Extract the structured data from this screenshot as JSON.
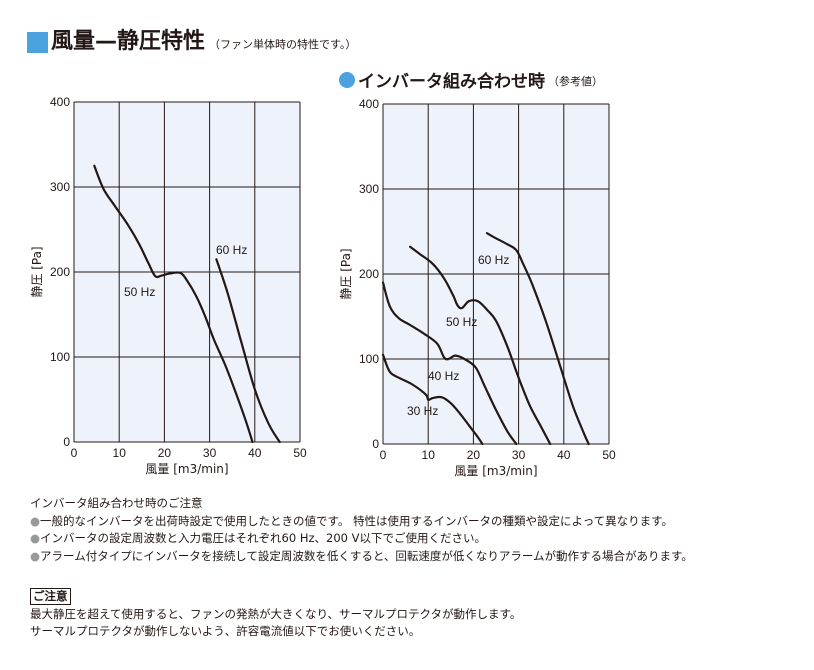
{
  "header": {
    "title": "風量—静圧特性",
    "subtitle": "（ファン単体時の特性です。）"
  },
  "inverter_header": {
    "title": "インバータ組み合わせ時",
    "subtitle": "（参考値）"
  },
  "colors": {
    "accent": "#4aa3df",
    "plot_background": "#eef3fb",
    "grid": "#231815",
    "curve": "#231815"
  },
  "chart_data": [
    {
      "type": "line",
      "title": "",
      "xlabel": "風量 [m3/min]",
      "ylabel": "静圧 [Pa]",
      "xlim": [
        0,
        50
      ],
      "ylim": [
        0,
        400
      ],
      "xticks": [
        "0",
        "10",
        "20",
        "30",
        "40",
        "50"
      ],
      "yticks": [
        "0",
        "100",
        "200",
        "300",
        "400"
      ],
      "grid": true,
      "series": [
        {
          "name": "50 Hz",
          "x": [
            4.5,
            6.5,
            9,
            12,
            14.5,
            16.5,
            18,
            19.5,
            21,
            23.5,
            25,
            27,
            29,
            31,
            33.5,
            36,
            38,
            39.5
          ],
          "y": [
            325,
            298,
            278,
            255,
            232,
            210,
            195,
            196,
            198,
            199,
            190,
            172,
            148,
            120,
            90,
            55,
            25,
            0
          ]
        },
        {
          "name": "60 Hz",
          "x": [
            31.5,
            34,
            37,
            40,
            43,
            45.5
          ],
          "y": [
            215,
            175,
            118,
            62,
            22,
            0
          ]
        }
      ]
    },
    {
      "type": "line",
      "title": "",
      "xlabel": "風量 [m3/min]",
      "ylabel": "静圧 [Pa]",
      "xlim": [
        0,
        50
      ],
      "ylim": [
        0,
        400
      ],
      "xticks": [
        "0",
        "10",
        "20",
        "30",
        "40",
        "50"
      ],
      "yticks": [
        "0",
        "100",
        "200",
        "300",
        "400"
      ],
      "grid": true,
      "series": [
        {
          "name": "60 Hz",
          "x": [
            23,
            25,
            27.5,
            29.5,
            31,
            33,
            36,
            39,
            42,
            44.5,
            45.5
          ],
          "y": [
            248,
            242,
            235,
            228,
            212,
            188,
            145,
            95,
            45,
            12,
            0
          ]
        },
        {
          "name": "50 Hz",
          "x": [
            6,
            8,
            11,
            13.5,
            15.5,
            16.5,
            17.5,
            19,
            21,
            23,
            25,
            27.5,
            30,
            32.5,
            35,
            37
          ],
          "y": [
            232,
            224,
            212,
            195,
            175,
            163,
            160,
            168,
            168,
            158,
            145,
            115,
            78,
            45,
            20,
            0
          ]
        },
        {
          "name": "40 Hz",
          "x": [
            0,
            1.5,
            3.5,
            6,
            9,
            12,
            13.5,
            14.5,
            16,
            18,
            20.5,
            22.5,
            25,
            27.5,
            29.5
          ],
          "y": [
            190,
            162,
            148,
            140,
            130,
            118,
            102,
            100,
            104,
            100,
            90,
            68,
            40,
            15,
            0
          ]
        },
        {
          "name": "30 Hz",
          "x": [
            0,
            1.5,
            3.5,
            6.5,
            9.5,
            10,
            11,
            13,
            15,
            17,
            19,
            21,
            22
          ],
          "y": [
            105,
            85,
            78,
            70,
            58,
            52,
            54,
            55,
            48,
            36,
            22,
            8,
            0
          ]
        }
      ]
    }
  ],
  "notes": {
    "heading": "インバータ組み合わせ時のご注意",
    "bullet_symbol": "●",
    "items": [
      "一般的なインバータを出荷時設定で使用したときの値です。 特性は使用するインバータの種類や設定によって異なります。",
      "インバータの設定周波数と入力電圧はそれぞれ60 Hz、200 V以下でご使用ください。",
      "アラーム付タイプにインバータを接続して設定周波数を低くすると、回転速度が低くなりアラームが動作する場合があります。"
    ]
  },
  "caution": {
    "heading": "ご注意",
    "lines": [
      "最大静圧を超えて使用すると、ファンの発熱が大きくなり、サーマルプロテクタが動作します。",
      "サーマルプロテクタが動作しないよう、許容電流値以下でお使いください。"
    ]
  }
}
